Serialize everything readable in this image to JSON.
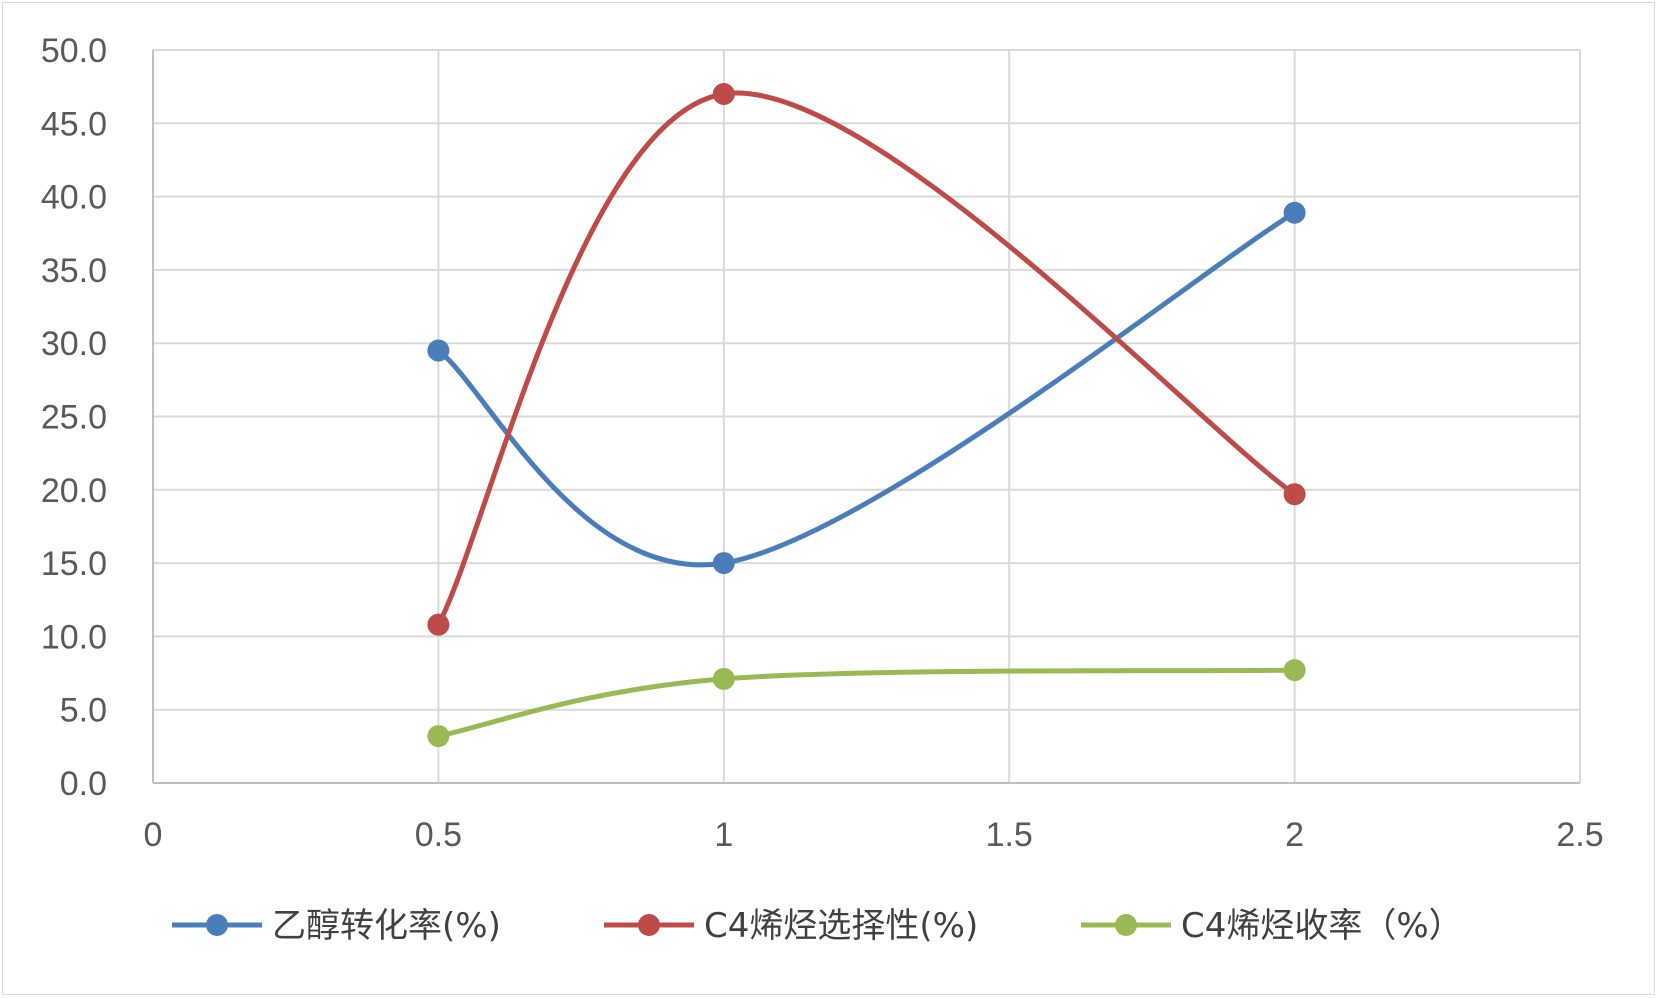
{
  "chart_data": {
    "type": "line",
    "title": "",
    "xlabel": "",
    "ylabel": "",
    "xlim": [
      0,
      2.5
    ],
    "ylim": [
      0,
      50
    ],
    "x_ticks": [
      "0",
      "0.5",
      "1",
      "1.5",
      "2",
      "2.5"
    ],
    "y_ticks": [
      "0.0",
      "5.0",
      "10.0",
      "15.0",
      "20.0",
      "25.0",
      "30.0",
      "35.0",
      "40.0",
      "45.0",
      "50.0"
    ],
    "grid": true,
    "smooth": true,
    "legend_position": "bottom",
    "x": [
      0.5,
      1,
      2
    ],
    "series": [
      {
        "name": "乙醇转化率(%)",
        "color": "#4a7ebb",
        "values": [
          29.5,
          15.0,
          38.9
        ]
      },
      {
        "name": "C4烯烃选择性(%)",
        "color": "#be4b48",
        "values": [
          10.8,
          47.0,
          19.7
        ]
      },
      {
        "name": "C4烯烃收率（%）",
        "color": "#98b954",
        "values": [
          3.2,
          7.1,
          7.7
        ]
      }
    ]
  }
}
